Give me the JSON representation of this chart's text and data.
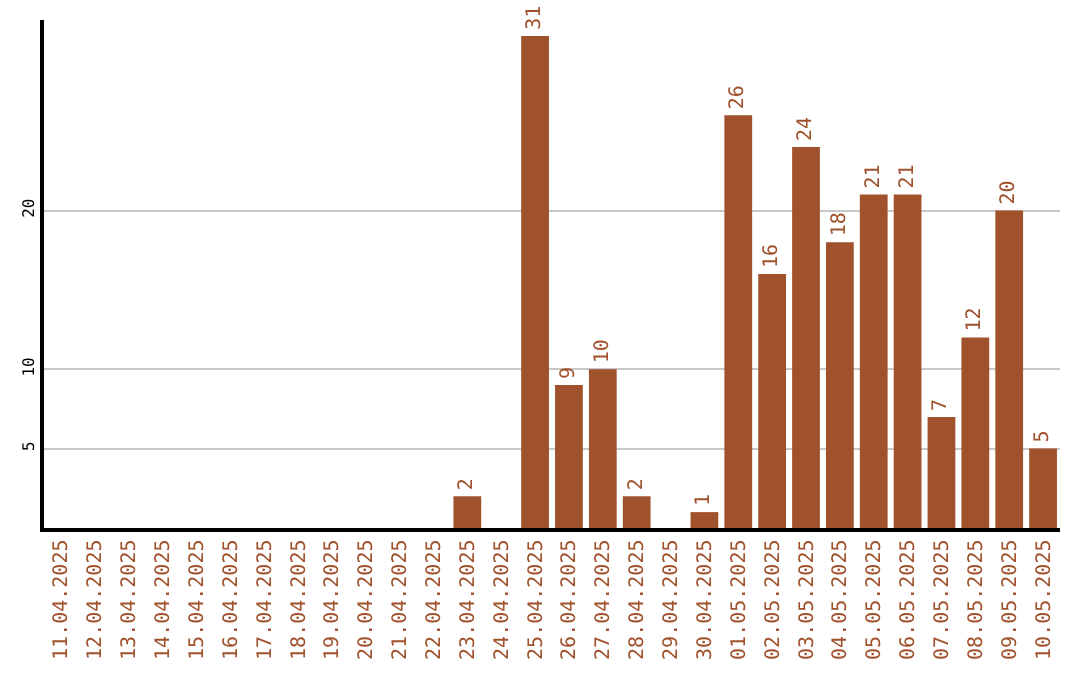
{
  "chart_data": {
    "type": "bar",
    "categories": [
      "11.04.2025",
      "12.04.2025",
      "13.04.2025",
      "14.04.2025",
      "15.04.2025",
      "16.04.2025",
      "17.04.2025",
      "18.04.2025",
      "19.04.2025",
      "20.04.2025",
      "21.04.2025",
      "22.04.2025",
      "23.04.2025",
      "24.04.2025",
      "25.04.2025",
      "26.04.2025",
      "27.04.2025",
      "28.04.2025",
      "29.04.2025",
      "30.04.2025",
      "01.05.2025",
      "02.05.2025",
      "03.05.2025",
      "04.05.2025",
      "05.05.2025",
      "06.05.2025",
      "07.05.2025",
      "08.05.2025",
      "09.05.2025",
      "10.05.2025"
    ],
    "values": [
      0,
      0,
      0,
      0,
      0,
      0,
      0,
      0,
      0,
      0,
      0,
      0,
      2,
      0,
      31,
      9,
      10,
      2,
      0,
      1,
      26,
      16,
      24,
      18,
      21,
      21,
      7,
      12,
      20,
      5
    ],
    "value_labels": [
      null,
      null,
      null,
      null,
      null,
      null,
      null,
      null,
      null,
      null,
      null,
      null,
      "2",
      null,
      "31",
      "9",
      "10",
      "2",
      null,
      "1",
      "26",
      "16",
      "24",
      "18",
      "21",
      "21",
      "7",
      "12",
      "20",
      "5"
    ],
    "color": "#a0522d",
    "ylim": [
      0,
      32
    ],
    "yticks": [
      5,
      10,
      20
    ],
    "grid": "y"
  }
}
